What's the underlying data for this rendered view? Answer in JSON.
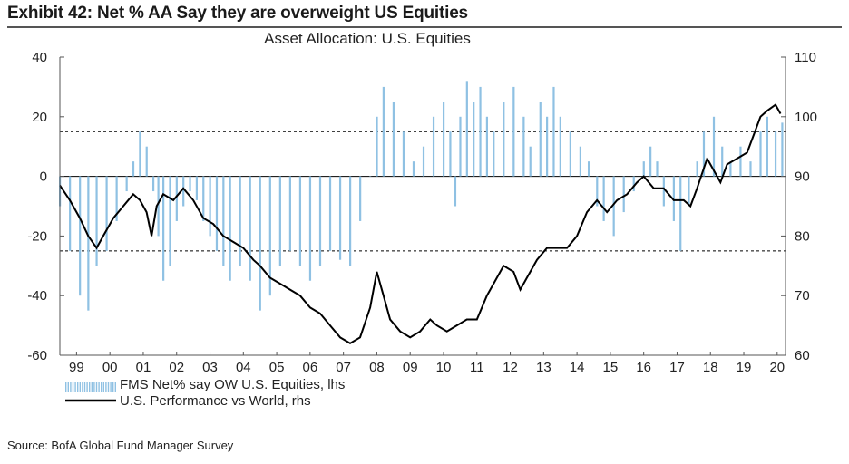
{
  "exhibit_title": "Exhibit 42: Net % AA Say they are overweight US Equities",
  "source": "Source: BofA Global Fund Manager Survey",
  "colors": {
    "bars": "#8fc1e3",
    "line": "#000000",
    "axis": "#555555",
    "text": "#222222"
  },
  "chart_data": {
    "type": "bar",
    "title": "Asset Allocation: U.S. Equities",
    "x_tick_labels": [
      "99",
      "00",
      "01",
      "02",
      "03",
      "04",
      "05",
      "06",
      "07",
      "08",
      "09",
      "10",
      "11",
      "12",
      "13",
      "14",
      "15",
      "16",
      "17",
      "18",
      "19",
      "20"
    ],
    "xlim": [
      1999.0,
      2020.75
    ],
    "y_left": {
      "ylim": [
        -60,
        40
      ],
      "ticks": [
        40,
        20,
        0,
        -20,
        -40,
        -60
      ]
    },
    "y_right": {
      "ylim": [
        60,
        110
      ],
      "ticks": [
        110,
        100,
        90,
        80,
        70,
        60
      ]
    },
    "reference_lines_left": [
      15,
      -25
    ],
    "legend_position": "bottom-left",
    "series": [
      {
        "name": "FMS Net% say OW U.S. Equities, lhs",
        "type": "bar",
        "axis": "left",
        "x_unit": "year",
        "points": [
          [
            1999.0,
            -10
          ],
          [
            1999.3,
            -25
          ],
          [
            1999.6,
            -40
          ],
          [
            1999.85,
            -45
          ],
          [
            2000.1,
            -30
          ],
          [
            2000.4,
            -25
          ],
          [
            2000.7,
            -15
          ],
          [
            2001.0,
            -5
          ],
          [
            2001.2,
            5
          ],
          [
            2001.4,
            15
          ],
          [
            2001.6,
            10
          ],
          [
            2001.8,
            -5
          ],
          [
            2001.95,
            -20
          ],
          [
            2002.1,
            -35
          ],
          [
            2002.3,
            -30
          ],
          [
            2002.5,
            -15
          ],
          [
            2002.7,
            -10
          ],
          [
            2002.9,
            -5
          ],
          [
            2003.1,
            -8
          ],
          [
            2003.3,
            -15
          ],
          [
            2003.5,
            -20
          ],
          [
            2003.7,
            -25
          ],
          [
            2003.9,
            -30
          ],
          [
            2004.1,
            -35
          ],
          [
            2004.4,
            -30
          ],
          [
            2004.7,
            -35
          ],
          [
            2005.0,
            -45
          ],
          [
            2005.3,
            -40
          ],
          [
            2005.6,
            -30
          ],
          [
            2005.9,
            -25
          ],
          [
            2006.2,
            -30
          ],
          [
            2006.5,
            -35
          ],
          [
            2006.8,
            -30
          ],
          [
            2007.1,
            -25
          ],
          [
            2007.4,
            -28
          ],
          [
            2007.7,
            -30
          ],
          [
            2008.0,
            -15
          ],
          [
            2008.3,
            0
          ],
          [
            2008.5,
            20
          ],
          [
            2008.7,
            30
          ],
          [
            2009.0,
            25
          ],
          [
            2009.3,
            15
          ],
          [
            2009.6,
            5
          ],
          [
            2009.9,
            10
          ],
          [
            2010.2,
            20
          ],
          [
            2010.5,
            25
          ],
          [
            2010.7,
            15
          ],
          [
            2010.85,
            -10
          ],
          [
            2011.0,
            20
          ],
          [
            2011.2,
            32
          ],
          [
            2011.4,
            25
          ],
          [
            2011.6,
            30
          ],
          [
            2011.8,
            20
          ],
          [
            2012.0,
            15
          ],
          [
            2012.3,
            25
          ],
          [
            2012.6,
            30
          ],
          [
            2012.9,
            20
          ],
          [
            2013.1,
            10
          ],
          [
            2013.4,
            25
          ],
          [
            2013.6,
            20
          ],
          [
            2013.8,
            30
          ],
          [
            2014.0,
            20
          ],
          [
            2014.3,
            15
          ],
          [
            2014.6,
            10
          ],
          [
            2014.85,
            5
          ],
          [
            2015.1,
            -10
          ],
          [
            2015.3,
            -15
          ],
          [
            2015.6,
            -20
          ],
          [
            2015.9,
            -12
          ],
          [
            2016.2,
            -5
          ],
          [
            2016.5,
            5
          ],
          [
            2016.7,
            10
          ],
          [
            2016.9,
            5
          ],
          [
            2017.1,
            -10
          ],
          [
            2017.4,
            -15
          ],
          [
            2017.6,
            -25
          ],
          [
            2017.85,
            -10
          ],
          [
            2018.1,
            5
          ],
          [
            2018.3,
            15
          ],
          [
            2018.6,
            20
          ],
          [
            2018.85,
            10
          ],
          [
            2019.1,
            5
          ],
          [
            2019.4,
            10
          ],
          [
            2019.7,
            5
          ],
          [
            2020.0,
            15
          ],
          [
            2020.2,
            20
          ],
          [
            2020.45,
            15
          ],
          [
            2020.65,
            18
          ]
        ]
      },
      {
        "name": "U.S. Performance vs World, rhs",
        "type": "line",
        "axis": "right",
        "x_unit": "year",
        "points": [
          [
            1999.0,
            88.5
          ],
          [
            1999.3,
            86
          ],
          [
            1999.6,
            83
          ],
          [
            1999.85,
            80
          ],
          [
            2000.1,
            78
          ],
          [
            2000.3,
            80
          ],
          [
            2000.6,
            83
          ],
          [
            2000.9,
            85
          ],
          [
            2001.2,
            87
          ],
          [
            2001.4,
            86
          ],
          [
            2001.6,
            84
          ],
          [
            2001.75,
            80
          ],
          [
            2001.9,
            85
          ],
          [
            2002.1,
            87
          ],
          [
            2002.4,
            86
          ],
          [
            2002.7,
            88
          ],
          [
            2003.0,
            86
          ],
          [
            2003.3,
            83
          ],
          [
            2003.6,
            82
          ],
          [
            2003.9,
            80
          ],
          [
            2004.2,
            79
          ],
          [
            2004.5,
            78
          ],
          [
            2004.8,
            76
          ],
          [
            2005.0,
            75
          ],
          [
            2005.3,
            73
          ],
          [
            2005.6,
            72
          ],
          [
            2005.9,
            71
          ],
          [
            2006.2,
            70
          ],
          [
            2006.5,
            68
          ],
          [
            2006.8,
            67
          ],
          [
            2007.1,
            65
          ],
          [
            2007.4,
            63
          ],
          [
            2007.7,
            62
          ],
          [
            2008.0,
            63
          ],
          [
            2008.3,
            68
          ],
          [
            2008.5,
            74
          ],
          [
            2008.7,
            70
          ],
          [
            2008.9,
            66
          ],
          [
            2009.2,
            64
          ],
          [
            2009.5,
            63
          ],
          [
            2009.8,
            64
          ],
          [
            2010.1,
            66
          ],
          [
            2010.3,
            65
          ],
          [
            2010.6,
            64
          ],
          [
            2010.9,
            65
          ],
          [
            2011.2,
            66
          ],
          [
            2011.5,
            66
          ],
          [
            2011.8,
            70
          ],
          [
            2012.0,
            72
          ],
          [
            2012.3,
            75
          ],
          [
            2012.6,
            74
          ],
          [
            2012.8,
            71
          ],
          [
            2013.0,
            73
          ],
          [
            2013.3,
            76
          ],
          [
            2013.6,
            78
          ],
          [
            2013.9,
            78
          ],
          [
            2014.2,
            78
          ],
          [
            2014.5,
            80
          ],
          [
            2014.8,
            84
          ],
          [
            2015.1,
            86
          ],
          [
            2015.4,
            84
          ],
          [
            2015.7,
            86
          ],
          [
            2016.0,
            87
          ],
          [
            2016.3,
            89
          ],
          [
            2016.5,
            90
          ],
          [
            2016.8,
            88
          ],
          [
            2017.1,
            88
          ],
          [
            2017.4,
            86
          ],
          [
            2017.7,
            86
          ],
          [
            2017.9,
            85
          ],
          [
            2018.1,
            88
          ],
          [
            2018.4,
            93
          ],
          [
            2018.6,
            91
          ],
          [
            2018.8,
            89
          ],
          [
            2019.0,
            92
          ],
          [
            2019.3,
            93
          ],
          [
            2019.6,
            94
          ],
          [
            2019.8,
            97
          ],
          [
            2020.0,
            100
          ],
          [
            2020.2,
            101
          ],
          [
            2020.45,
            102
          ],
          [
            2020.6,
            100.5
          ]
        ]
      }
    ]
  }
}
